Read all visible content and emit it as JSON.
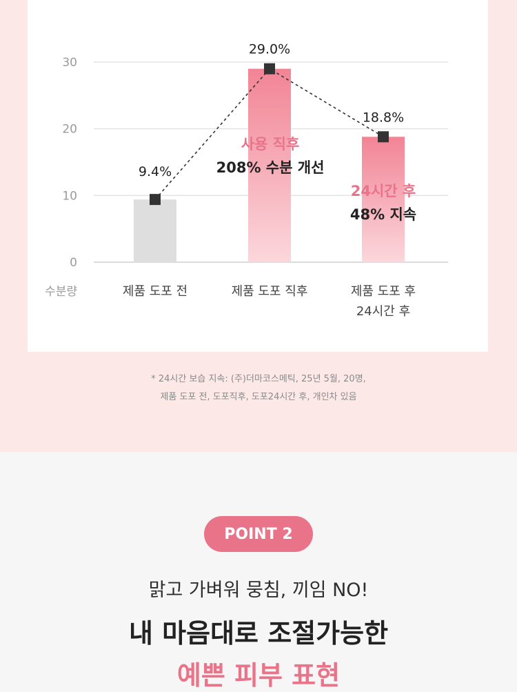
{
  "chart_data": {
    "type": "bar",
    "categories": [
      "제품 도포 전",
      "제품 도포 직후",
      "제품 도포 후\n24시간 후"
    ],
    "values": [
      9.4,
      29.0,
      18.8
    ],
    "value_labels": [
      "9.4%",
      "29.0%",
      "18.8%"
    ],
    "ylabel": "수분량",
    "yticks": [
      0,
      10,
      20,
      30
    ],
    "ylim": [
      0,
      33
    ],
    "grid": true,
    "bar_colors": [
      "#dedede",
      "#f28495",
      "#f28495"
    ],
    "line_color": "#333333",
    "annotations": [
      {
        "highlight": "사용 직후",
        "text": "208% 수분 개선"
      },
      {
        "highlight": "24시간 후",
        "text": "48% 지속"
      }
    ]
  },
  "note": {
    "line1": "* 24시간 보습 지속: (주)더마코스메틱, 25년 5월, 20명,",
    "line2": "제품 도포 전, 도포직후, 도포24시간 후, 개인차 있음"
  },
  "point": {
    "badge": "POINT 2",
    "subtitle": "맑고 가벼워 뭉침, 끼임 NO!",
    "title": "내 마음대로 조절가능한",
    "accent_title": "예쁜 피부 표현"
  },
  "colors": {
    "accent": "#e9748a",
    "pink_bg": "#fde8e8",
    "grey_bg": "#f6f6f6"
  }
}
